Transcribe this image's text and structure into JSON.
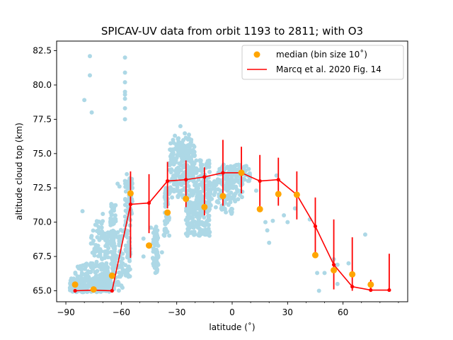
{
  "chart_data": {
    "type": "scatter",
    "title": "SPICAV-UV data from orbit 1193 to 2811; with O3",
    "xlabel": "latitude (˚)",
    "ylabel": "altitude cloud top (km)",
    "xlim": [
      -95,
      95
    ],
    "ylim": [
      64.2,
      83.2
    ],
    "xticks": [
      -90,
      -60,
      -30,
      0,
      30,
      60
    ],
    "xtick_labels": [
      "−90",
      "−60",
      "−30",
      "0",
      "30",
      "60"
    ],
    "yticks": [
      65.0,
      67.5,
      70.0,
      72.5,
      75.0,
      77.5,
      80.0,
      82.5
    ],
    "ytick_labels": [
      "65.0",
      "67.5",
      "70.0",
      "72.5",
      "75.0",
      "77.5",
      "80.0",
      "82.5"
    ],
    "grid": false,
    "legend_position": "top-right",
    "legend": [
      {
        "label": "median (bin size 10˚)",
        "marker": "circle",
        "color": "#ffa500"
      },
      {
        "label": "Marcq et al. 2020 Fig. 14",
        "marker": "line",
        "color": "#ff0000"
      }
    ],
    "colors": {
      "scatter": "#add8e6",
      "median": "#ffa500",
      "reference": "#ff0000"
    },
    "median": {
      "x": [
        -85,
        -75,
        -65,
        -55,
        -45,
        -35,
        -25,
        -15,
        -5,
        5,
        15,
        25,
        35,
        45,
        55,
        65,
        75
      ],
      "y": [
        65.45,
        65.1,
        66.1,
        72.1,
        68.3,
        70.7,
        71.7,
        71.1,
        71.9,
        73.6,
        70.95,
        72.05,
        72.0,
        67.6,
        66.5,
        66.2,
        65.45
      ]
    },
    "reference": {
      "x": [
        -85,
        -75,
        -65,
        -55,
        -45,
        -35,
        -25,
        -15,
        -5,
        5,
        15,
        25,
        35,
        45,
        55,
        65,
        75,
        85
      ],
      "y": [
        65.0,
        65.05,
        65.0,
        71.3,
        71.4,
        73.0,
        73.1,
        73.3,
        73.6,
        73.6,
        73.0,
        73.1,
        72.0,
        69.7,
        66.9,
        65.3,
        65.05,
        65.05
      ],
      "err_low": [
        65.0,
        65.0,
        65.0,
        67.4,
        69.2,
        71.0,
        71.1,
        70.5,
        71.2,
        72.1,
        71.1,
        71.2,
        70.2,
        67.4,
        65.1,
        65.0,
        65.0,
        65.0
      ],
      "err_high": [
        65.0,
        65.1,
        65.1,
        73.7,
        73.5,
        74.4,
        74.5,
        74.0,
        76.0,
        75.5,
        74.9,
        74.7,
        73.7,
        71.8,
        70.2,
        68.9,
        65.8,
        67.7
      ]
    },
    "scatter_outliers": [
      [
        -80,
        78.9
      ],
      [
        -77,
        82.1
      ],
      [
        -77,
        80.7
      ],
      [
        -76,
        78.0
      ],
      [
        -58,
        82.0
      ],
      [
        -58,
        80.9
      ],
      [
        -58,
        80.2
      ],
      [
        -58,
        79.5
      ],
      [
        -58,
        79.3
      ],
      [
        -58,
        79.0
      ],
      [
        -58,
        78.3
      ],
      [
        -58,
        77.5
      ],
      [
        -57,
        73.5
      ],
      [
        -58,
        73.0
      ],
      [
        -73,
        68.9
      ],
      [
        -70,
        70.6
      ],
      [
        -62,
        72.8
      ],
      [
        -61,
        72.6
      ],
      [
        -48,
        68.8
      ],
      [
        -41,
        69.1
      ],
      [
        -42,
        68.7
      ],
      [
        -44,
        69.6
      ],
      [
        -28,
        77.0
      ],
      [
        -31,
        76.3
      ],
      [
        -32,
        76.0
      ],
      [
        -48,
        67.5
      ],
      [
        -38,
        67.8
      ],
      [
        -81,
        70.8
      ],
      [
        -84,
        65.0
      ],
      [
        -82,
        65.7
      ],
      [
        55,
        67.3
      ],
      [
        57,
        65.5
      ],
      [
        63,
        67.0
      ],
      [
        72,
        69.1
      ],
      [
        47,
        65.0
      ],
      [
        57,
        66.9
      ],
      [
        18,
        70.0
      ],
      [
        19,
        69.4
      ],
      [
        22,
        70.1
      ],
      [
        20,
        68.5
      ],
      [
        42,
        70.2
      ],
      [
        13,
        72.3
      ],
      [
        28,
        70.5
      ],
      [
        30,
        70.0
      ],
      [
        34,
        71.0
      ],
      [
        24,
        73.4
      ],
      [
        46,
        66.3
      ],
      [
        50,
        66.3
      ]
    ],
    "scatter_clusters": [
      {
        "lat": [
          -88,
          -66
        ],
        "alt": [
          64.9,
          65.9
        ],
        "n": 240
      },
      {
        "lat": [
          -85,
          -66
        ],
        "alt": [
          65.9,
          67.0
        ],
        "n": 55
      },
      {
        "lat": [
          -77,
          -70
        ],
        "alt": [
          66.5,
          70.2
        ],
        "n": 55
      },
      {
        "lat": [
          -69,
          -66
        ],
        "alt": [
          65.5,
          69.5
        ],
        "n": 45
      },
      {
        "lat": [
          -66,
          -63
        ],
        "alt": [
          65.0,
          71.5
        ],
        "n": 110
      },
      {
        "lat": [
          -62,
          -59
        ],
        "alt": [
          65.0,
          69.6
        ],
        "n": 45
      },
      {
        "lat": [
          -58,
          -55
        ],
        "alt": [
          66.0,
          73.2
        ],
        "n": 80
      },
      {
        "lat": [
          -56,
          -54
        ],
        "alt": [
          70.5,
          73.2
        ],
        "n": 30
      },
      {
        "lat": [
          -43,
          -40
        ],
        "alt": [
          66.3,
          69.8
        ],
        "n": 60
      },
      {
        "lat": [
          -37,
          -34
        ],
        "alt": [
          69.0,
          72.8
        ],
        "n": 50
      },
      {
        "lat": [
          -34,
          -20
        ],
        "alt": [
          71.8,
          75.8
        ],
        "n": 200
      },
      {
        "lat": [
          -30,
          -22
        ],
        "alt": [
          73.5,
          76.5
        ],
        "n": 60
      },
      {
        "lat": [
          -25,
          -12
        ],
        "alt": [
          69.0,
          71.5
        ],
        "n": 170
      },
      {
        "lat": [
          -22,
          -12
        ],
        "alt": [
          70.8,
          74.6
        ],
        "n": 110
      },
      {
        "lat": [
          -12,
          0
        ],
        "alt": [
          70.6,
          73.0
        ],
        "n": 80
      },
      {
        "lat": [
          -8,
          10
        ],
        "alt": [
          73.0,
          74.2
        ],
        "n": 100
      },
      {
        "lat": [
          -3,
          6
        ],
        "alt": [
          71.5,
          73.0
        ],
        "n": 40
      }
    ]
  }
}
